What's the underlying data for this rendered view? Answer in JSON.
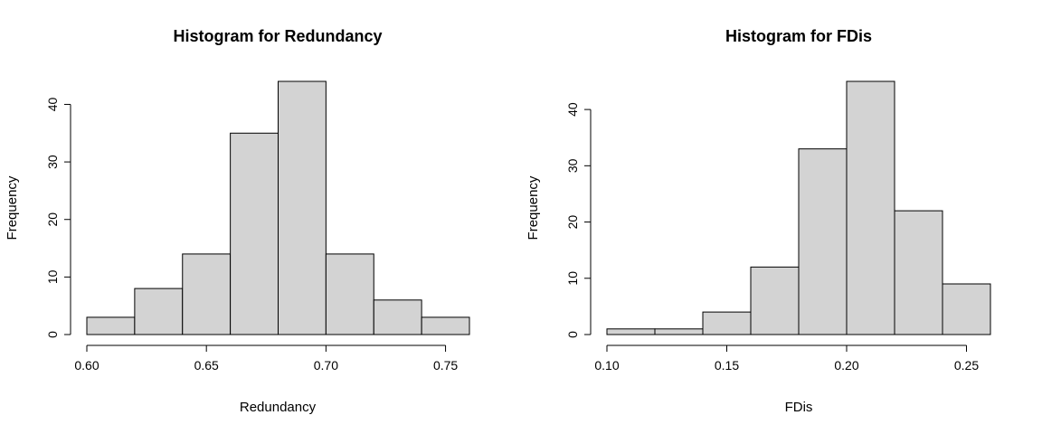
{
  "chart_data": [
    {
      "type": "bar",
      "title": "Histogram for Redundancy",
      "xlabel": "Redundancy",
      "ylabel": "Frequency",
      "bin_edges": [
        0.6,
        0.62,
        0.64,
        0.66,
        0.68,
        0.7,
        0.72,
        0.74,
        0.76
      ],
      "values": [
        3,
        8,
        14,
        35,
        44,
        14,
        6,
        3
      ],
      "xlim": [
        0.6,
        0.76
      ],
      "ylim": [
        0,
        44
      ],
      "x_ticks": [
        0.6,
        0.65,
        0.7,
        0.75
      ],
      "x_tick_labels": [
        "0.60",
        "0.65",
        "0.70",
        "0.75"
      ],
      "y_ticks": [
        0,
        10,
        20,
        30,
        40
      ],
      "y_tick_labels": [
        "0",
        "10",
        "20",
        "30",
        "40"
      ],
      "bar_color": "#d3d3d3",
      "grid": false
    },
    {
      "type": "bar",
      "title": "Histogram for FDis",
      "xlabel": "FDis",
      "ylabel": "Frequency",
      "bin_edges": [
        0.1,
        0.12,
        0.14,
        0.16,
        0.18,
        0.2,
        0.22,
        0.24,
        0.26
      ],
      "values": [
        1,
        1,
        4,
        12,
        33,
        45,
        22,
        9
      ],
      "xlim": [
        0.1,
        0.26
      ],
      "ylim": [
        0,
        45
      ],
      "x_ticks": [
        0.1,
        0.15,
        0.2,
        0.25
      ],
      "x_tick_labels": [
        "0.10",
        "0.15",
        "0.20",
        "0.25"
      ],
      "y_ticks": [
        0,
        10,
        20,
        30,
        40
      ],
      "y_tick_labels": [
        "0",
        "10",
        "20",
        "30",
        "40"
      ],
      "bar_color": "#d3d3d3",
      "grid": false
    }
  ]
}
